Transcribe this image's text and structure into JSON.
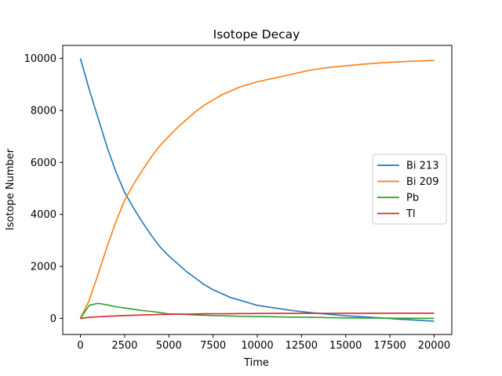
{
  "chart_data": {
    "type": "line",
    "title": "Isotope Decay",
    "xlabel": "Time",
    "ylabel": "Isotope Number",
    "xlim": [
      -1000,
      21000
    ],
    "ylim": [
      -620,
      10500
    ],
    "xticks": [
      0,
      2500,
      5000,
      7500,
      10000,
      12500,
      15000,
      17500,
      20000
    ],
    "xtick_labels": [
      "0",
      "2500",
      "5000",
      "7500",
      "10000",
      "12500",
      "15000",
      "17500",
      "20000"
    ],
    "yticks": [
      0,
      2000,
      4000,
      6000,
      8000,
      10000
    ],
    "ytick_labels": [
      "0",
      "2000",
      "4000",
      "6000",
      "8000",
      "10000"
    ],
    "grid": false,
    "legend_position": "center-right",
    "x": [
      0,
      500,
      1000,
      1500,
      2000,
      2500,
      3000,
      3500,
      4000,
      4500,
      5000,
      5500,
      6000,
      6500,
      7000,
      7500,
      8000,
      8500,
      9000,
      9500,
      10000,
      11000,
      12000,
      13000,
      14000,
      15000,
      16000,
      17000,
      18000,
      19000,
      20000
    ],
    "series": [
      {
        "name": "Bi 213",
        "color": "#1f77b4",
        "values": [
          10000,
          8800,
          7700,
          6600,
          5650,
          4850,
          4250,
          3700,
          3200,
          2750,
          2400,
          2100,
          1800,
          1550,
          1300,
          1100,
          950,
          800,
          700,
          600,
          500,
          400,
          300,
          220,
          160,
          100,
          60,
          20,
          -30,
          -70,
          -110
        ]
      },
      {
        "name": "Bi 209",
        "color": "#ff7f0e",
        "values": [
          0,
          700,
          1700,
          2750,
          3700,
          4550,
          5150,
          5700,
          6200,
          6650,
          7000,
          7350,
          7650,
          7950,
          8200,
          8400,
          8600,
          8750,
          8900,
          9000,
          9100,
          9250,
          9400,
          9550,
          9650,
          9720,
          9780,
          9830,
          9870,
          9900,
          9920
        ]
      },
      {
        "name": "Pb",
        "color": "#2ca02c",
        "values": [
          0,
          500,
          580,
          520,
          450,
          400,
          350,
          300,
          270,
          220,
          170,
          160,
          150,
          130,
          120,
          110,
          100,
          90,
          80,
          75,
          70,
          60,
          50,
          40,
          30,
          20,
          15,
          10,
          5,
          3,
          0
        ]
      },
      {
        "name": "Tl",
        "color": "#d62728",
        "values": [
          0,
          40,
          60,
          80,
          95,
          110,
          120,
          130,
          140,
          148,
          155,
          160,
          165,
          170,
          175,
          178,
          180,
          182,
          184,
          185,
          187,
          190,
          192,
          194,
          195,
          196,
          197,
          198,
          199,
          200,
          200
        ]
      }
    ]
  }
}
